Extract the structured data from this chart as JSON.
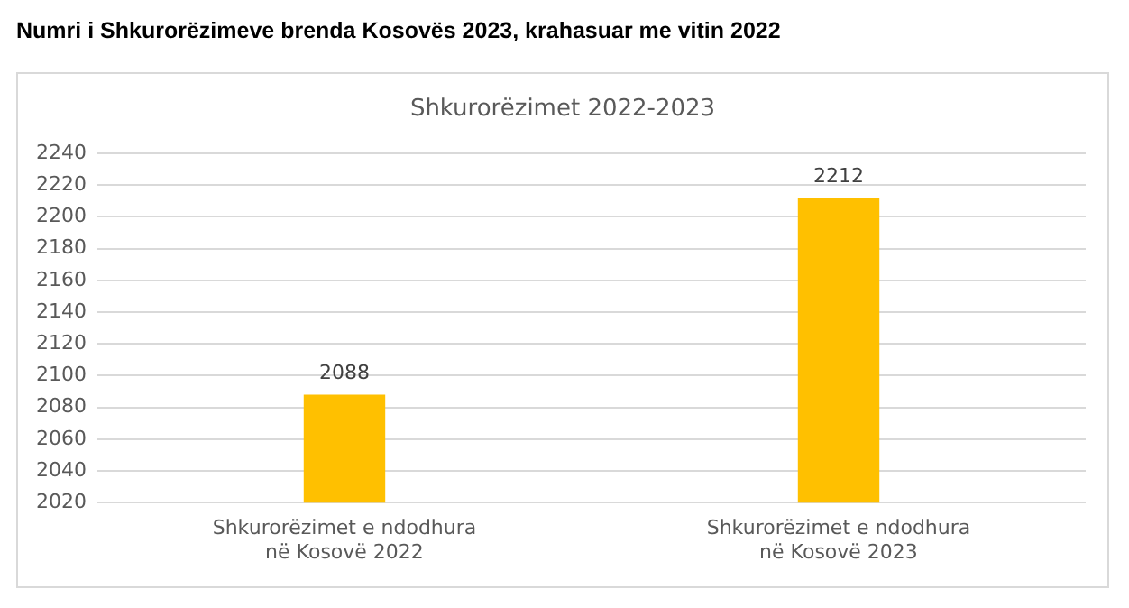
{
  "chart_data": {
    "type": "bar",
    "title": "Numri i Shkurorëzimeve brenda Kosovës 2023, krahasuar me vitin 2022",
    "subtitle": "Shkurorëzimet 2022-2023",
    "categories": [
      "Shkurorëzimet e ndodhura në Kosovë 2022",
      "Shkurorëzimet e ndodhura në Kosovë 2023"
    ],
    "values": [
      2088,
      2212
    ],
    "color": "#ffc000",
    "ylim": [
      2020,
      2240
    ],
    "yticks": [
      2020,
      2040,
      2060,
      2080,
      2100,
      2120,
      2140,
      2160,
      2180,
      2200,
      2220,
      2240
    ],
    "grid": "y",
    "data_labels": true
  }
}
